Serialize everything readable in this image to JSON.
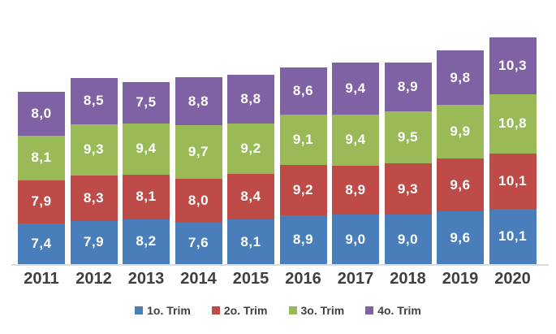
{
  "chart_data": {
    "type": "bar",
    "stacked": true,
    "orientation": "vertical",
    "title": "",
    "xlabel": "",
    "ylabel": "",
    "grid": false,
    "value_axis_visible": false,
    "legend_position": "bottom",
    "value_decimal_separator": ",",
    "categories": [
      "2011",
      "2012",
      "2013",
      "2014",
      "2015",
      "2016",
      "2017",
      "2018",
      "2019",
      "2020"
    ],
    "series": [
      {
        "name": "1o. Trim",
        "color": "#4A7EBB",
        "values": [
          7.4,
          7.9,
          8.2,
          7.6,
          8.1,
          8.9,
          9.0,
          9.0,
          9.6,
          10.1
        ],
        "labels": [
          "7,4",
          "7,9",
          "8,2",
          "7,6",
          "8,1",
          "8,9",
          "9,0",
          "9,0",
          "9,6",
          "10,1"
        ]
      },
      {
        "name": "2o. Trim",
        "color": "#BE4B48",
        "values": [
          7.9,
          8.3,
          8.1,
          8.0,
          8.4,
          9.2,
          8.9,
          9.3,
          9.6,
          10.1
        ],
        "labels": [
          "7,9",
          "8,3",
          "8,1",
          "8,0",
          "8,4",
          "9,2",
          "8,9",
          "9,3",
          "9,6",
          "10,1"
        ]
      },
      {
        "name": "3o. Trim",
        "color": "#9ABA58",
        "values": [
          8.1,
          9.3,
          9.4,
          9.7,
          9.2,
          9.1,
          9.4,
          9.5,
          9.9,
          10.8
        ],
        "labels": [
          "8,1",
          "9,3",
          "9,4",
          "9,7",
          "9,2",
          "9,1",
          "9,4",
          "9,5",
          "9,9",
          "10,8"
        ]
      },
      {
        "name": "4o. Trim",
        "color": "#7E62A3",
        "values": [
          8.0,
          8.5,
          7.5,
          8.8,
          8.8,
          8.6,
          9.4,
          8.9,
          9.8,
          10.3
        ],
        "labels": [
          "8,0",
          "8,5",
          "7,5",
          "8,8",
          "8,8",
          "8,6",
          "9,4",
          "8,9",
          "9,8",
          "10,3"
        ]
      }
    ],
    "legend": [
      {
        "label": "1o. Trim",
        "color": "#4A7EBB"
      },
      {
        "label": "2o. Trim",
        "color": "#BE4B48"
      },
      {
        "label": "3o. Trim",
        "color": "#9ABA58"
      },
      {
        "label": "4o. Trim",
        "color": "#7E62A3"
      }
    ]
  }
}
